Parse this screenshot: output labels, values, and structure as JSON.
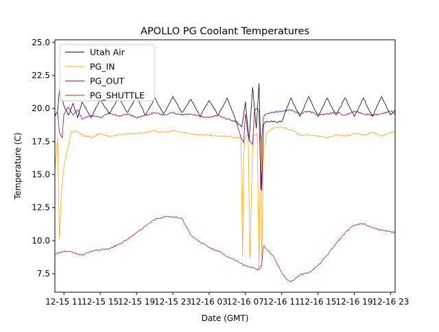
{
  "chart_data": {
    "type": "line",
    "title": "APOLLO PG Coolant Temperatures",
    "xlabel": "Date (GMT)",
    "ylabel": "Temperature (C)",
    "x_unit": "hours since 12-15 09:00 GMT",
    "xlim": [
      1.0,
      38.5
    ],
    "ylim": [
      6.1,
      25.2
    ],
    "grid": false,
    "legend_position": "top-left",
    "x_ticks": [
      {
        "hour": 2,
        "label": "12-15 11"
      },
      {
        "hour": 6,
        "label": "12-15 15"
      },
      {
        "hour": 10,
        "label": "12-15 19"
      },
      {
        "hour": 14,
        "label": "12-15 23"
      },
      {
        "hour": 18,
        "label": "12-16 03"
      },
      {
        "hour": 22,
        "label": "12-16 07"
      },
      {
        "hour": 26,
        "label": "12-16 11"
      },
      {
        "hour": 30,
        "label": "12-16 15"
      },
      {
        "hour": 34,
        "label": "12-16 19"
      },
      {
        "hour": 38,
        "label": "12-16 23"
      }
    ],
    "y_ticks": [
      {
        "value": 7.5,
        "label": "7.5"
      },
      {
        "value": 10.0,
        "label": "10.0"
      },
      {
        "value": 12.5,
        "label": "12.5"
      },
      {
        "value": 15.0,
        "label": "15.0"
      },
      {
        "value": 17.5,
        "label": "17.5"
      },
      {
        "value": 20.0,
        "label": "20.0"
      },
      {
        "value": 22.5,
        "label": "22.5"
      },
      {
        "value": 25.0,
        "label": "25.0"
      }
    ],
    "series": [
      {
        "name": "Utah Air",
        "color": "#000000",
        "x": [
          1.0,
          1.3,
          1.5,
          2.0,
          2.5,
          3.0,
          3.5,
          4.0,
          5.0,
          6.0,
          7.0,
          8.0,
          9.0,
          10.0,
          11.0,
          12.0,
          13.0,
          14.0,
          15.0,
          16.0,
          17.0,
          18.0,
          19.0,
          20.0,
          21.0,
          21.6,
          22.0,
          22.4,
          22.8,
          23.2,
          23.5,
          23.8,
          24.0,
          24.2,
          24.5,
          25.0,
          26.0,
          27.0,
          28.0,
          29.0,
          30.0,
          31.0,
          32.0,
          33.0,
          34.0,
          35.0,
          36.0,
          37.0,
          38.0,
          38.5
        ],
        "y": [
          19.4,
          19.8,
          21.4,
          20.2,
          19.5,
          20.4,
          19.3,
          20.5,
          19.3,
          20.7,
          19.6,
          20.8,
          19.7,
          20.9,
          19.5,
          20.8,
          19.6,
          20.9,
          19.7,
          20.7,
          19.4,
          20.6,
          19.5,
          20.8,
          19.0,
          18.6,
          20.5,
          17.6,
          21.6,
          18.5,
          21.9,
          13.8,
          18.8,
          19.0,
          19.0,
          19.0,
          19.0,
          20.8,
          19.4,
          20.9,
          19.4,
          20.8,
          19.5,
          20.8,
          19.4,
          20.8,
          19.4,
          20.9,
          19.5,
          19.9
        ]
      },
      {
        "name": "PG_IN",
        "color": "#ffa500",
        "x": [
          1.0,
          1.3,
          1.5,
          1.7,
          2.0,
          2.5,
          2.8,
          3.0,
          3.3,
          4.0,
          5.0,
          6.0,
          7.0,
          8.0,
          9.0,
          10.0,
          11.0,
          12.0,
          13.0,
          14.0,
          15.0,
          16.0,
          17.0,
          18.0,
          19.0,
          20.0,
          21.0,
          21.5,
          21.7,
          21.8,
          22.0,
          22.3,
          22.5,
          22.7,
          22.8,
          22.9,
          23.1,
          23.3,
          23.5,
          23.7,
          23.8,
          24.0,
          24.3,
          24.5,
          25.0,
          26.0,
          27.0,
          28.0,
          29.0,
          30.0,
          31.0,
          32.0,
          33.0,
          34.0,
          35.0,
          36.0,
          37.0,
          38.0,
          38.5
        ],
        "y": [
          15.4,
          17.8,
          10.2,
          13.5,
          15.6,
          17.2,
          18.3,
          18.2,
          18.3,
          18.0,
          17.8,
          18.1,
          17.9,
          18.0,
          18.1,
          18.1,
          18.2,
          18.3,
          18.2,
          18.3,
          18.2,
          18.1,
          18.0,
          18.0,
          17.9,
          17.9,
          17.8,
          17.8,
          8.8,
          16.5,
          17.9,
          18.0,
          8.7,
          14.5,
          17.0,
          18.0,
          18.0,
          18.1,
          7.9,
          17.9,
          8.0,
          16.5,
          18.0,
          18.3,
          18.5,
          18.6,
          18.4,
          18.0,
          18.0,
          17.9,
          17.8,
          18.0,
          17.9,
          18.1,
          18.0,
          18.2,
          17.9,
          18.2,
          18.2
        ]
      },
      {
        "name": "PG_OUT",
        "color": "#800080",
        "x": [
          1.0,
          1.3,
          1.5,
          1.8,
          2.0,
          2.5,
          3.0,
          3.5,
          4.0,
          5.0,
          6.0,
          7.0,
          8.0,
          9.0,
          10.0,
          11.0,
          12.0,
          13.0,
          14.0,
          15.0,
          16.0,
          17.0,
          18.0,
          19.0,
          20.0,
          21.0,
          21.5,
          21.8,
          22.0,
          22.3,
          22.5,
          22.8,
          23.0,
          23.3,
          23.5,
          23.7,
          23.8,
          24.0,
          24.3,
          25.0,
          26.0,
          27.0,
          28.0,
          29.0,
          30.0,
          31.0,
          32.0,
          33.0,
          34.0,
          35.0,
          36.0,
          37.0,
          38.0,
          38.5
        ],
        "y": [
          19.5,
          19.7,
          18.2,
          17.8,
          19.6,
          20.1,
          19.5,
          19.9,
          19.2,
          19.5,
          19.3,
          19.7,
          19.4,
          19.6,
          19.3,
          19.5,
          19.7,
          19.5,
          19.7,
          19.5,
          19.6,
          19.4,
          19.3,
          19.5,
          19.2,
          19.0,
          17.8,
          17.4,
          19.6,
          18.0,
          17.5,
          17.3,
          19.9,
          20.0,
          19.8,
          13.9,
          17.8,
          19.4,
          19.6,
          19.7,
          19.8,
          19.9,
          19.6,
          19.8,
          19.5,
          19.6,
          19.7,
          19.5,
          19.8,
          19.6,
          19.5,
          19.6,
          19.8,
          19.6
        ]
      },
      {
        "name": "PG_SHUTTLE",
        "color": "#a52a2a",
        "x": [
          1.0,
          2.0,
          3.0,
          4.0,
          5.0,
          6.0,
          7.0,
          8.0,
          9.0,
          10.0,
          11.0,
          12.0,
          13.0,
          14.0,
          15.0,
          16.0,
          17.0,
          18.0,
          19.0,
          20.0,
          21.0,
          22.0,
          23.0,
          23.5,
          23.8,
          24.0,
          25.0,
          26.0,
          26.5,
          27.0,
          28.0,
          29.0,
          30.0,
          31.0,
          32.0,
          33.0,
          34.0,
          35.0,
          36.0,
          37.0,
          38.0,
          38.5
        ],
        "y": [
          9.0,
          9.2,
          9.1,
          8.9,
          9.2,
          9.3,
          9.4,
          9.7,
          10.1,
          10.6,
          11.1,
          11.6,
          11.8,
          11.8,
          11.7,
          10.4,
          9.9,
          9.5,
          9.2,
          8.8,
          8.5,
          8.1,
          7.9,
          7.8,
          8.2,
          9.6,
          8.9,
          7.6,
          7.1,
          6.9,
          7.4,
          7.6,
          8.1,
          8.9,
          9.8,
          10.6,
          11.2,
          11.3,
          11.0,
          10.8,
          10.7,
          10.6
        ]
      }
    ]
  }
}
